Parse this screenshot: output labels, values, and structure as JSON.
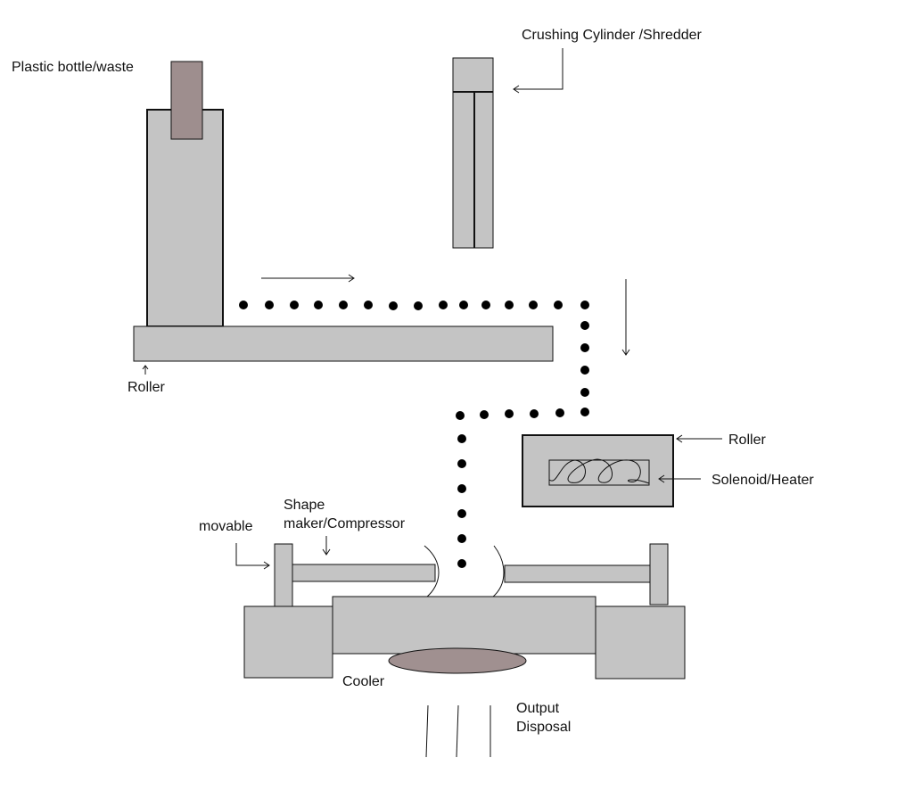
{
  "labels": {
    "plastic_bottle": "Plastic bottle/waste",
    "shredder": "Crushing Cylinder /Shredder",
    "roller_bottom": "Roller",
    "roller_right": "Roller",
    "heater": "Solenoid/Heater",
    "shape_maker_line1": "Shape",
    "shape_maker_line2": "maker/Compressor",
    "movable": "movable",
    "cooler": "Cooler",
    "output_line1": "Output",
    "output_line2": "Disposal"
  },
  "colors": {
    "machine_fill": "#c4c4c4",
    "bottle_fill": "#9e8e8e",
    "cooler_fill": "#a09090",
    "outline": "#111111",
    "particles": "#000000"
  }
}
